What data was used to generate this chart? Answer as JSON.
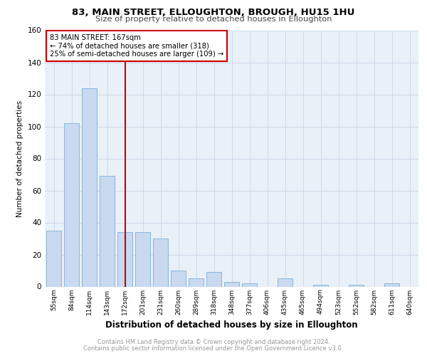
{
  "title1": "83, MAIN STREET, ELLOUGHTON, BROUGH, HU15 1HU",
  "title2": "Size of property relative to detached houses in Elloughton",
  "xlabel": "Distribution of detached houses by size in Elloughton",
  "ylabel": "Number of detached properties",
  "footer1": "Contains HM Land Registry data © Crown copyright and database right 2024.",
  "footer2": "Contains public sector information licensed under the Open Government Licence v3.0.",
  "bin_labels": [
    "55sqm",
    "84sqm",
    "114sqm",
    "143sqm",
    "172sqm",
    "201sqm",
    "231sqm",
    "260sqm",
    "289sqm",
    "318sqm",
    "348sqm",
    "377sqm",
    "406sqm",
    "435sqm",
    "465sqm",
    "494sqm",
    "523sqm",
    "552sqm",
    "582sqm",
    "611sqm",
    "640sqm"
  ],
  "bar_values": [
    35,
    102,
    124,
    69,
    34,
    34,
    30,
    10,
    5,
    9,
    3,
    2,
    0,
    5,
    0,
    1,
    0,
    1,
    0,
    2,
    0
  ],
  "bar_color": "#c9d9f0",
  "bar_edge_color": "#7bafd4",
  "vline_color": "#cc0000",
  "vline_position": 4.0,
  "annotation_text": "83 MAIN STREET: 167sqm\n← 74% of detached houses are smaller (318)\n25% of semi-detached houses are larger (109) →",
  "annotation_box_color": "#ffffff",
  "annotation_box_edge": "#cc0000",
  "ylim": [
    0,
    160
  ],
  "yticks": [
    0,
    20,
    40,
    60,
    80,
    100,
    120,
    140,
    160
  ],
  "grid_color": "#d0d8e8",
  "bg_color": "#eaf0f8"
}
